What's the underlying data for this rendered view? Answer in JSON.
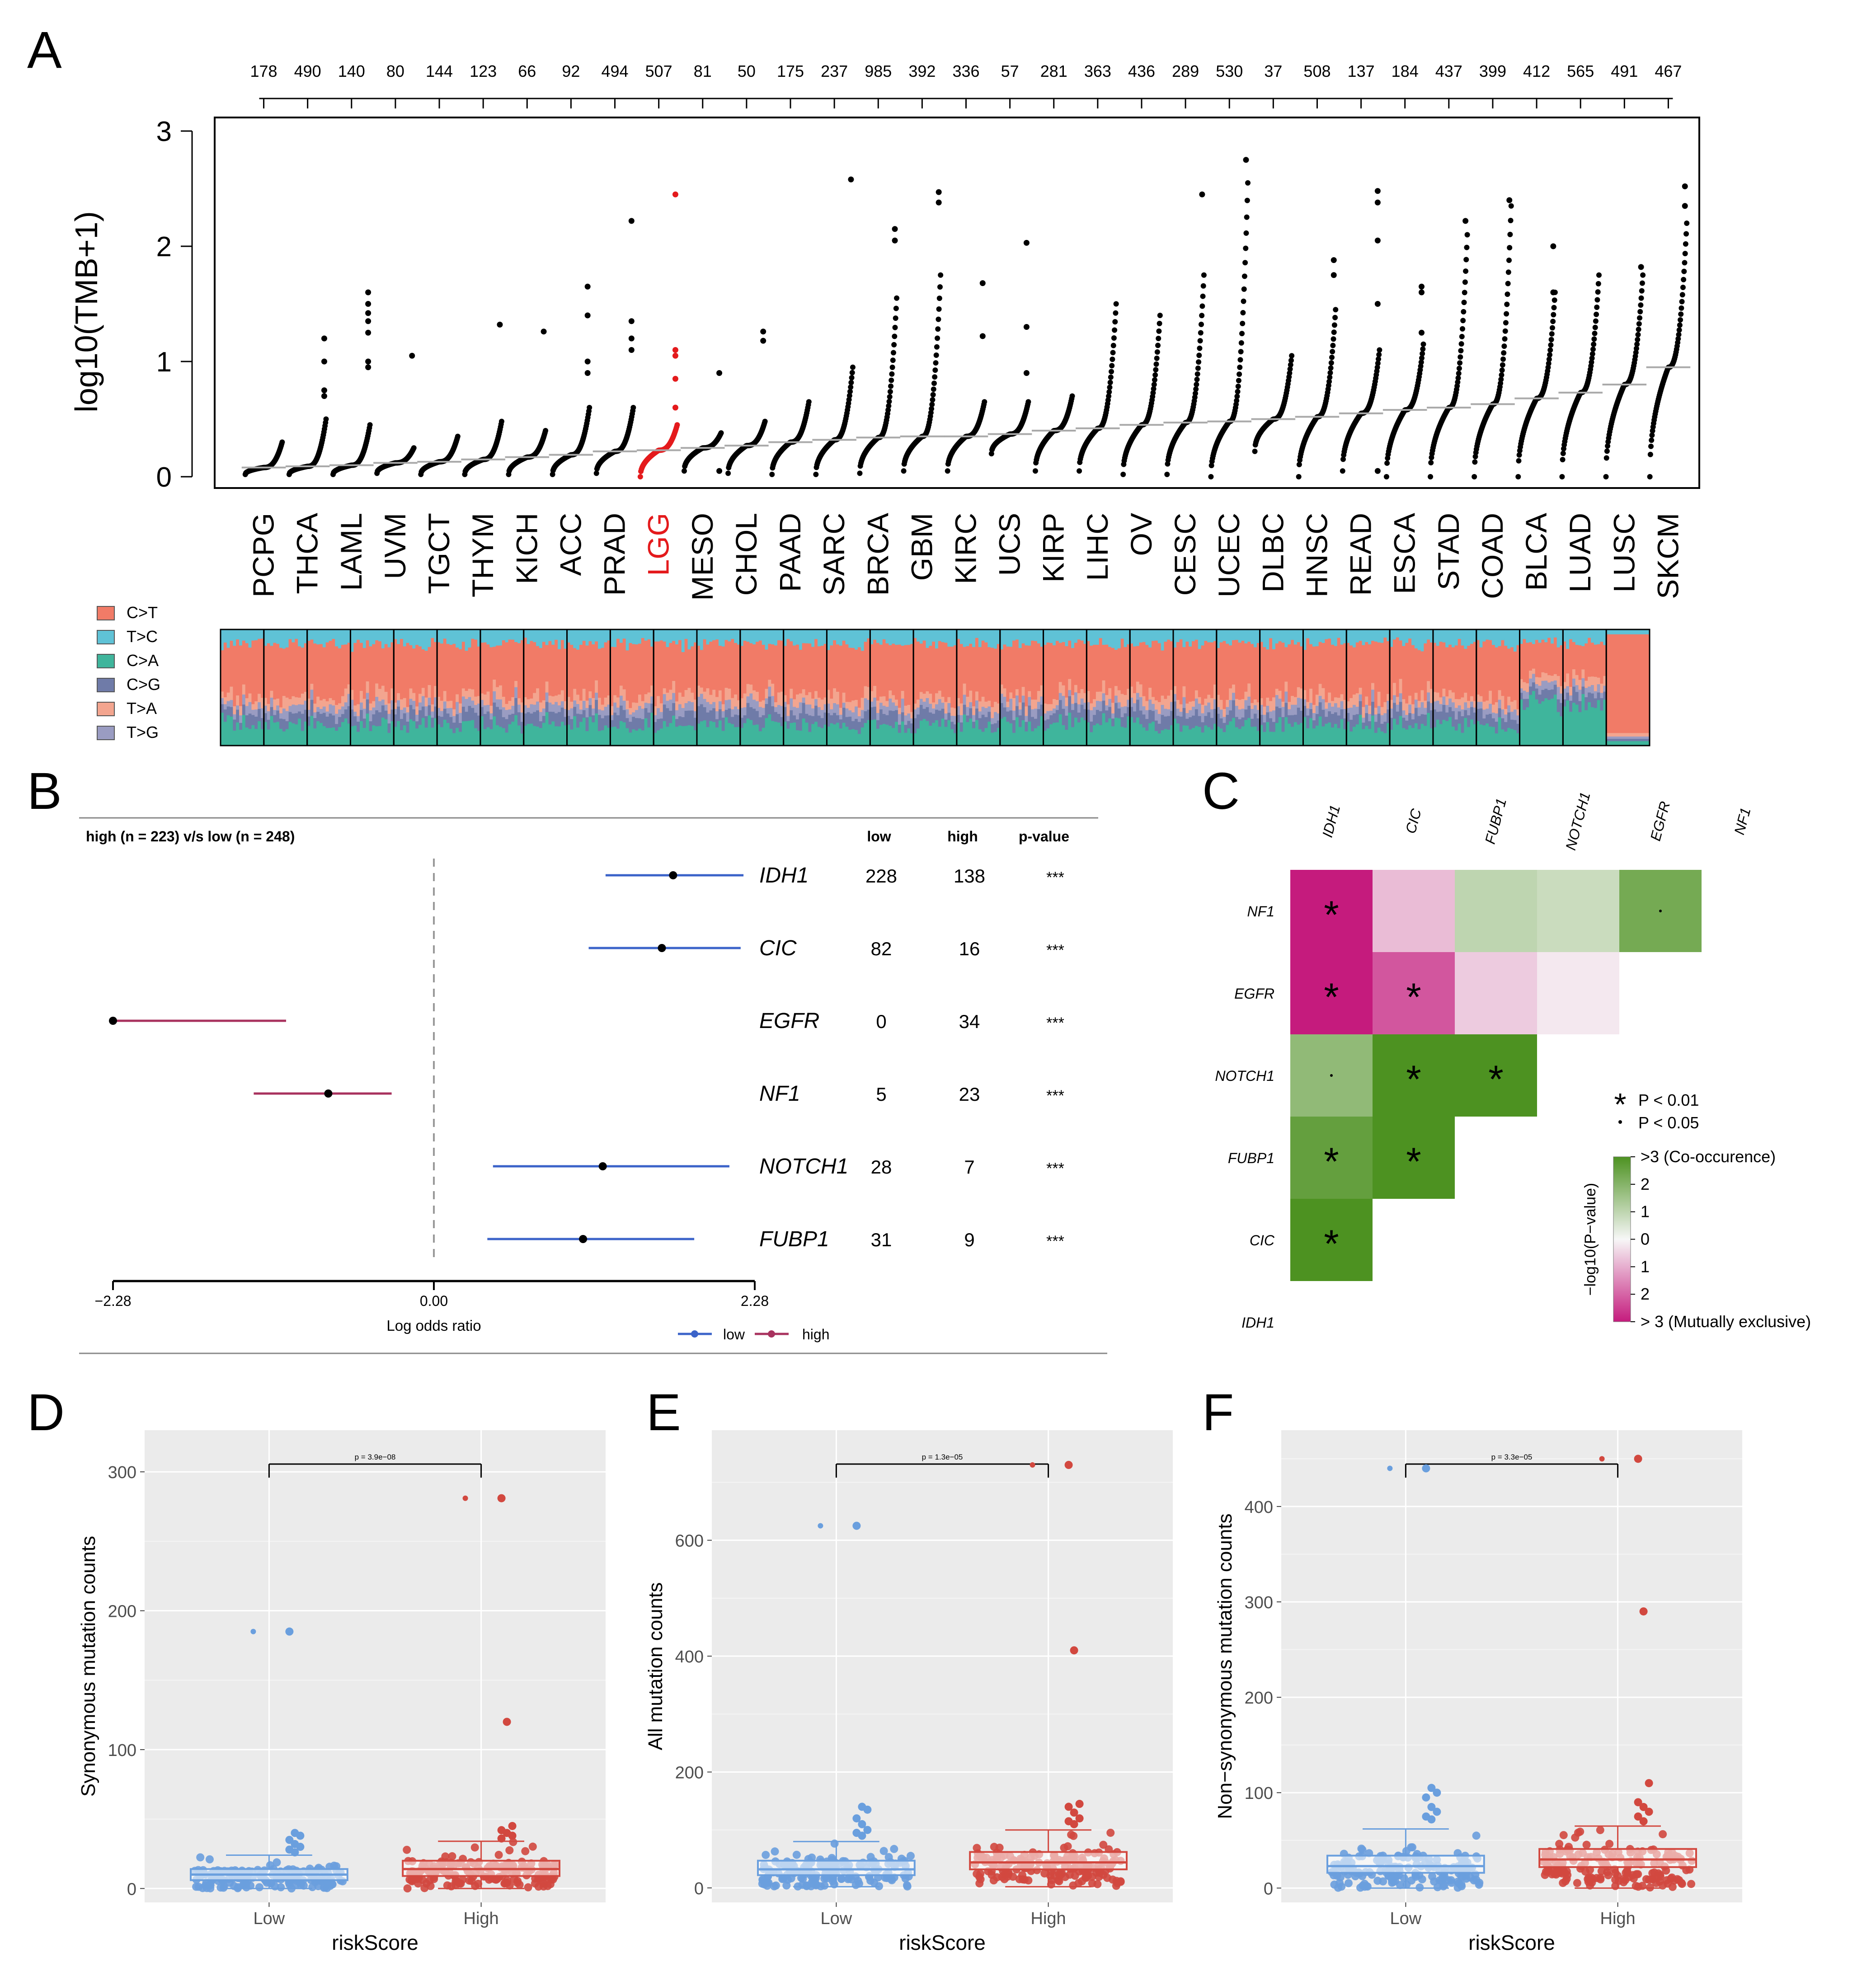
{
  "panels": {
    "A": "A",
    "B": "B",
    "C": "C",
    "D": "D",
    "E": "E",
    "F": "F"
  },
  "chart_data": [
    {
      "id": "A_tmb",
      "type": "scatter",
      "title": "",
      "ylabel": "log10(TMB+1)",
      "ylim": [
        0,
        3
      ],
      "yticks": [
        0,
        1,
        2,
        3
      ],
      "highlight": "LGG",
      "highlight_color": "#e41a1c",
      "point_color": "#000000",
      "median_color": "#aaaaaa",
      "categories": [
        "PCPG",
        "THCA",
        "LAML",
        "UVM",
        "TGCT",
        "THYM",
        "KICH",
        "ACC",
        "PRAD",
        "LGG",
        "MESO",
        "CHOL",
        "PAAD",
        "SARC",
        "BRCA",
        "GBM",
        "KIRC",
        "UCS",
        "KIRP",
        "LIHC",
        "OV",
        "CESC",
        "UCEC",
        "DLBC",
        "HNSC",
        "READ",
        "ESCA",
        "STAD",
        "COAD",
        "BLCA",
        "LUAD",
        "LUSC",
        "SKCM"
      ],
      "sample_counts": [
        "178",
        "490",
        "140",
        "80",
        "144",
        "123",
        "66",
        "92",
        "494",
        "507",
        "81",
        "50",
        "175",
        "237",
        "985",
        "392",
        "336",
        "57",
        "281",
        "363",
        "436",
        "289",
        "530",
        "37",
        "508",
        "137",
        "184",
        "437",
        "399",
        "412",
        "565",
        "491",
        "467"
      ],
      "min": [
        0.02,
        0.02,
        0.02,
        0.03,
        0.02,
        0.02,
        0.02,
        0.02,
        0.03,
        0.0,
        0.05,
        0.03,
        0.02,
        0.02,
        0.03,
        0.05,
        0.05,
        0.2,
        0.05,
        0.05,
        0.02,
        0.02,
        0.0,
        0.22,
        0.0,
        0.05,
        0.0,
        0.0,
        0.0,
        0.0,
        0.0,
        0.0,
        0.0
      ],
      "median": [
        0.08,
        0.09,
        0.1,
        0.12,
        0.13,
        0.15,
        0.17,
        0.19,
        0.22,
        0.23,
        0.25,
        0.27,
        0.3,
        0.32,
        0.34,
        0.35,
        0.35,
        0.37,
        0.4,
        0.42,
        0.45,
        0.47,
        0.48,
        0.5,
        0.52,
        0.55,
        0.58,
        0.6,
        0.63,
        0.68,
        0.73,
        0.8,
        0.95
      ],
      "max": [
        0.3,
        0.5,
        0.45,
        0.25,
        0.35,
        0.48,
        0.4,
        0.6,
        0.6,
        0.45,
        0.38,
        0.48,
        0.65,
        0.95,
        1.55,
        1.75,
        0.65,
        0.65,
        0.7,
        1.5,
        1.4,
        1.75,
        2.55,
        1.05,
        1.45,
        1.1,
        1.15,
        2.1,
        2.35,
        1.6,
        1.75,
        1.75,
        2.2
      ],
      "outliers": [
        [],
        [
          1.0,
          0.75,
          0.7,
          1.2
        ],
        [
          1.6,
          1.5,
          1.42,
          1.35,
          1.25,
          1.0,
          0.95
        ],
        [
          1.05
        ],
        [],
        [
          1.32
        ],
        [
          1.26
        ],
        [
          1.65,
          1.4,
          1.0,
          0.9
        ],
        [
          2.22,
          1.35,
          1.2,
          1.1
        ],
        [
          2.45,
          1.1,
          1.05,
          0.85,
          0.6
        ],
        [
          0.05,
          0.9
        ],
        [
          1.18,
          1.26
        ],
        [],
        [
          2.58
        ],
        [
          2.15,
          2.05
        ],
        [
          2.47,
          2.38
        ],
        [
          1.68,
          1.22
        ],
        [
          2.03,
          1.3,
          0.9
        ],
        [],
        [],
        [],
        [
          2.45
        ],
        [
          2.75
        ],
        [],
        [
          1.88,
          1.75
        ],
        [
          2.48,
          2.38,
          2.05,
          1.5,
          0.05
        ],
        [
          1.65,
          1.6,
          1.25
        ],
        [
          2.22
        ],
        [
          2.4
        ],
        [
          2.0,
          1.6
        ],
        [],
        [
          1.82
        ],
        [
          2.52,
          2.35
        ]
      ]
    },
    {
      "id": "A_spectra",
      "type": "stacked_bar",
      "legend": [
        "C>T",
        "T>C",
        "C>A",
        "C>G",
        "T>A",
        "T>G"
      ],
      "colors": [
        "#f17b67",
        "#5fc2d6",
        "#3fb59c",
        "#6f7ba8",
        "#f3a58f",
        "#9a9cc2"
      ]
    },
    {
      "id": "B_forest",
      "type": "forest",
      "title": "high (n = 223) v/s low (n = 248)",
      "xlabel": "Log odds ratio",
      "xlim": [
        -2.28,
        2.28
      ],
      "xtick_labels": [
        "−2.28",
        "0.00",
        "2.28"
      ],
      "col_headers": [
        "low",
        "high",
        "p-value"
      ],
      "genes": [
        "IDH1",
        "CIC",
        "EGFR",
        "NF1",
        "NOTCH1",
        "FUBP1"
      ],
      "or": [
        1.7,
        1.62,
        -2.28,
        -0.75,
        1.2,
        1.06
      ],
      "ci_low": [
        1.22,
        1.1,
        -2.28,
        -1.28,
        0.42,
        0.38
      ],
      "ci_high": [
        2.2,
        2.18,
        -1.05,
        -0.3,
        2.1,
        1.85
      ],
      "direction": [
        "low",
        "low",
        "high",
        "high",
        "low",
        "low"
      ],
      "low_counts": [
        "228",
        "82",
        "0",
        "5",
        "28",
        "31"
      ],
      "high_counts": [
        "138",
        "16",
        "34",
        "23",
        "7",
        "9"
      ],
      "pvalues": [
        "***",
        "***",
        "***",
        "***",
        "***",
        "***"
      ],
      "legend": [
        "low",
        "high"
      ],
      "colors": {
        "low": "#3b63c9",
        "high": "#a8325e"
      }
    },
    {
      "id": "C_interaction",
      "type": "heatmap",
      "col_labels": [
        "IDH1",
        "CIC",
        "FUBP1",
        "NOTCH1",
        "EGFR",
        "NF1"
      ],
      "row_labels": [
        "NF1",
        "EGFR",
        "NOTCH1",
        "FUBP1",
        "CIC",
        "IDH1"
      ],
      "values": [
        [
          -3,
          -0.8,
          1.0,
          0.8,
          2.3
        ],
        [
          -3,
          -2.2,
          -0.6,
          -0.2
        ],
        [
          1.8,
          3,
          3
        ],
        [
          2.6,
          3
        ],
        [
          3
        ]
      ],
      "marks": [
        [
          "*",
          "",
          "",
          "",
          "."
        ],
        [
          "*",
          "*",
          "",
          ""
        ],
        [
          ".",
          "*",
          "*"
        ],
        [
          "*",
          "*"
        ],
        [
          "*"
        ]
      ],
      "sig_legend": [
        {
          "symbol": "*",
          "label": "P < 0.01"
        },
        {
          "symbol": ".",
          "label": "P < 0.05"
        }
      ],
      "colorbar_title": "−log10(P−value)",
      "colorbar_labels": [
        ">3 (Co-occurence)",
        "2",
        "1",
        "0",
        "1",
        "2",
        "> 3 (Mutually exclusive)"
      ],
      "colors": {
        "co": "#4d9221",
        "mid": "#f7f7f7",
        "ex": "#c51b7d"
      }
    },
    {
      "id": "D_box",
      "type": "box",
      "ylabel": "Synonymous mutation counts",
      "xlabel": "riskScore",
      "categories": [
        "Low",
        "High"
      ],
      "ylim": [
        -10,
        330
      ],
      "yticks": [
        0,
        100,
        200,
        300
      ],
      "pvalue": "p = 3.9e−08",
      "box": [
        {
          "q1": 6,
          "median": 10,
          "q3": 14,
          "whisk_lo": 0,
          "whisk_hi": 24
        },
        {
          "q1": 9,
          "median": 14,
          "q3": 20,
          "whisk_lo": 0,
          "whisk_hi": 34
        }
      ],
      "outliers": [
        [
          185,
          40,
          38,
          35,
          32,
          30,
          28,
          26
        ],
        [
          281,
          120,
          45,
          42,
          40,
          38,
          36
        ]
      ],
      "colors": [
        "#6a9fde",
        "#d2483f"
      ]
    },
    {
      "id": "E_box",
      "type": "box",
      "ylabel": "All mutation counts",
      "xlabel": "riskScore",
      "categories": [
        "Low",
        "High"
      ],
      "ylim": [
        -25,
        790
      ],
      "yticks": [
        0,
        200,
        400,
        600
      ],
      "pvalue": "p = 1.3e−05",
      "box": [
        {
          "q1": 22,
          "median": 32,
          "q3": 47,
          "whisk_lo": 2,
          "whisk_hi": 80
        },
        {
          "q1": 32,
          "median": 44,
          "q3": 62,
          "whisk_lo": 2,
          "whisk_hi": 100
        }
      ],
      "outliers": [
        [
          625,
          140,
          135,
          120,
          110,
          100,
          95,
          90
        ],
        [
          730,
          410,
          145,
          140,
          130,
          120,
          115,
          110
        ]
      ],
      "colors": [
        "#6a9fde",
        "#d2483f"
      ]
    },
    {
      "id": "F_box",
      "type": "box",
      "ylabel": "Non−synonymous mutation counts",
      "xlabel": "riskScore",
      "categories": [
        "Low",
        "High"
      ],
      "ylim": [
        -15,
        480
      ],
      "yticks": [
        0,
        100,
        200,
        300,
        400
      ],
      "pvalue": "p = 3.3e−05",
      "box": [
        {
          "q1": 16,
          "median": 23,
          "q3": 34,
          "whisk_lo": 0,
          "whisk_hi": 62
        },
        {
          "q1": 22,
          "median": 30,
          "q3": 41,
          "whisk_lo": 0,
          "whisk_hi": 65
        }
      ],
      "outliers": [
        [
          440,
          105,
          100,
          95,
          85,
          80,
          75,
          72
        ],
        [
          450,
          290,
          110,
          90,
          85,
          80,
          75,
          70
        ]
      ],
      "colors": [
        "#6a9fde",
        "#d2483f"
      ]
    }
  ]
}
